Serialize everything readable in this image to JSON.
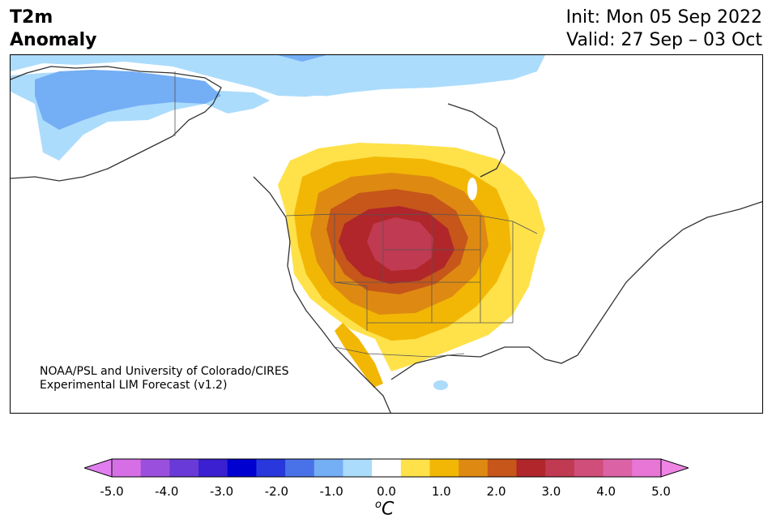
{
  "title": {
    "line1": "T2m",
    "line2": "Anomaly"
  },
  "init": "Init: Mon 05 Sep 2022",
  "valid": "Valid: 27 Sep – 03 Oct",
  "credit": {
    "line1": "NOAA/PSL and University of Colorado/CIRES",
    "line2": "Experimental LIM Forecast (v1.2)"
  },
  "colorbar": {
    "ticks": [
      "-5.0",
      "-4.0",
      "-3.0",
      "-2.0",
      "-1.0",
      "0.0",
      "1.0",
      "2.0",
      "3.0",
      "4.0",
      "5.0"
    ],
    "unit_sup": "o",
    "unit": "C",
    "levels": [
      -5.0,
      -4.5,
      -4.0,
      -3.5,
      -3.0,
      -2.5,
      -2.0,
      -1.5,
      -1.0,
      -0.5,
      0.5,
      1.0,
      1.5,
      2.0,
      2.5,
      3.0,
      3.5,
      4.0,
      4.5,
      5.0
    ],
    "colors": [
      "#d66fe6",
      "#9a50dc",
      "#6a3ad8",
      "#3a20d0",
      "#0000d0",
      "#2838dc",
      "#4a72e8",
      "#74aef4",
      "#acdcfc",
      "#ffffff",
      "#ffe14a",
      "#f2b705",
      "#de8a12",
      "#c6561a",
      "#b0262a",
      "#c03a52",
      "#cf4e7a",
      "#dc62a6",
      "#e876d6"
    ],
    "under_color": "#e07ef0",
    "over_color": "#ef84e4"
  },
  "map": {
    "region": "North America",
    "features": [
      "land",
      "country-borders",
      "state-borders",
      "coastlines"
    ],
    "anomaly_regions": [
      {
        "name": "alaska-cool",
        "value_c": -1.5
      },
      {
        "name": "northern-canada-cool",
        "value_c": -1.0
      },
      {
        "name": "western-us-warm",
        "value_c": 1.0
      },
      {
        "name": "central-rockies-warm-peak",
        "value_c": 3.5
      },
      {
        "name": "gulf-cool-spot",
        "value_c": -1.0
      }
    ]
  }
}
